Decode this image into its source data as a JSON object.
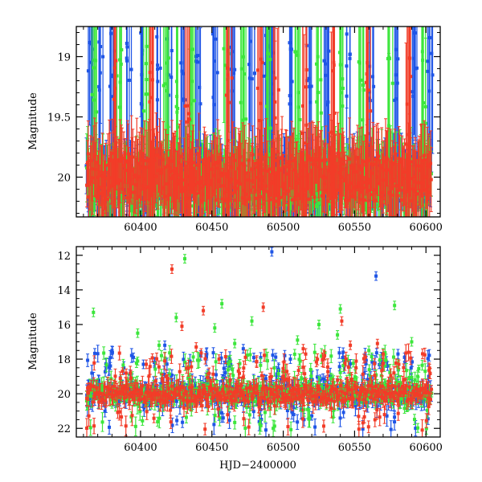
{
  "colors": {
    "blue": "#1f55e6",
    "green": "#3ce63c",
    "red": "#f23c28",
    "axis": "#000000"
  },
  "chart_data": [
    {
      "type": "scatter",
      "panel": "top",
      "title": "",
      "xlabel": "",
      "ylabel": "Magnitude",
      "xlim": [
        60355,
        60610
      ],
      "ylim": [
        20.33,
        18.75
      ],
      "y_inverted": true,
      "grid": false,
      "error_bars": true,
      "xticks": [
        60400,
        60450,
        60500,
        60550,
        60600
      ],
      "xtick_labels": [
        "60400",
        "60450",
        "60500",
        "60550",
        "60600"
      ],
      "yticks": [
        19,
        19.5,
        20
      ],
      "ytick_labels": [
        "19",
        "19.5",
        "20"
      ],
      "series": [
        {
          "color": "blue",
          "band_mag": [
            19.9,
            20.2
          ],
          "err": 0.25,
          "spikes_x": [
            60365,
            60372,
            60380,
            60392,
            60400,
            60412,
            60420,
            60430,
            60440,
            60452,
            60465,
            60478,
            60487,
            60492,
            60505,
            60518,
            60530,
            60545,
            60562,
            60580,
            60592,
            60603
          ],
          "spike_mag": [
            18.8,
            19.4
          ]
        },
        {
          "color": "green",
          "band_mag": [
            19.85,
            20.25
          ],
          "err": 0.25,
          "spikes_x": [
            60368,
            60385,
            60404,
            60418,
            60427,
            60436,
            60460,
            60472,
            60490,
            60510,
            60525,
            60540,
            60555,
            60575,
            60598
          ],
          "spike_mag": [
            18.9,
            19.6
          ]
        },
        {
          "color": "red",
          "band_mag": [
            19.8,
            20.2
          ],
          "err": 0.3,
          "spikes_x": [
            60382,
            60408,
            60433,
            60462,
            60484,
            60495,
            60515,
            60535,
            60560,
            60588
          ],
          "spike_mag": [
            19.0,
            19.8
          ]
        }
      ]
    },
    {
      "type": "scatter",
      "panel": "bottom",
      "title": "",
      "xlabel": "HJD−2400000",
      "ylabel": "Magnitude",
      "xlim": [
        60355,
        60610
      ],
      "ylim": [
        22.5,
        11.5
      ],
      "y_inverted": true,
      "grid": false,
      "error_bars": true,
      "xticks": [
        60400,
        60450,
        60500,
        60550,
        60600
      ],
      "xtick_labels": [
        "60400",
        "60450",
        "60500",
        "60550",
        "60600"
      ],
      "yticks": [
        12,
        14,
        16,
        18,
        20,
        22
      ],
      "ytick_labels": [
        "12",
        "14",
        "16",
        "18",
        "20",
        "22"
      ],
      "series": [
        {
          "color": "blue",
          "outliers": [
            [
              60492,
              11.8
            ],
            [
              60565,
              13.2
            ],
            [
              60380,
              17.5
            ],
            [
              60395,
              17.9
            ],
            [
              60417,
              17.2
            ],
            [
              60446,
              17.8
            ],
            [
              60472,
              17.4
            ],
            [
              60505,
              18.0
            ],
            [
              60542,
              17.6
            ],
            [
              60585,
              17.9
            ],
            [
              60402,
              18.3
            ],
            [
              60460,
              18.2
            ]
          ]
        },
        {
          "color": "green",
          "outliers": [
            [
              60367,
              15.3
            ],
            [
              60431,
              12.2
            ],
            [
              60425,
              15.6
            ],
            [
              60457,
              14.8
            ],
            [
              60478,
              15.8
            ],
            [
              60525,
              16.0
            ],
            [
              60538,
              16.6
            ],
            [
              60540,
              15.1
            ],
            [
              60578,
              14.9
            ],
            [
              60398,
              16.5
            ],
            [
              60413,
              17.2
            ],
            [
              60452,
              16.2
            ],
            [
              60466,
              17.1
            ],
            [
              60510,
              16.9
            ],
            [
              60560,
              17.5
            ],
            [
              60590,
              17.0
            ]
          ]
        },
        {
          "color": "red",
          "outliers": [
            [
              60422,
              12.8
            ],
            [
              60429,
              16.1
            ],
            [
              60444,
              15.2
            ],
            [
              60439,
              17.3
            ],
            [
              60486,
              15.0
            ],
            [
              60514,
              17.4
            ],
            [
              60541,
              15.8
            ],
            [
              60547,
              17.2
            ],
            [
              60566,
              17.1
            ],
            [
              60570,
              17.7
            ],
            [
              60581,
              18.3
            ],
            [
              60404,
              18.3
            ],
            [
              60455,
              18.0
            ],
            [
              60529,
              17.8
            ]
          ]
        }
      ],
      "band_mag": [
        19.5,
        20.5
      ],
      "band_err": 0.5
    }
  ]
}
